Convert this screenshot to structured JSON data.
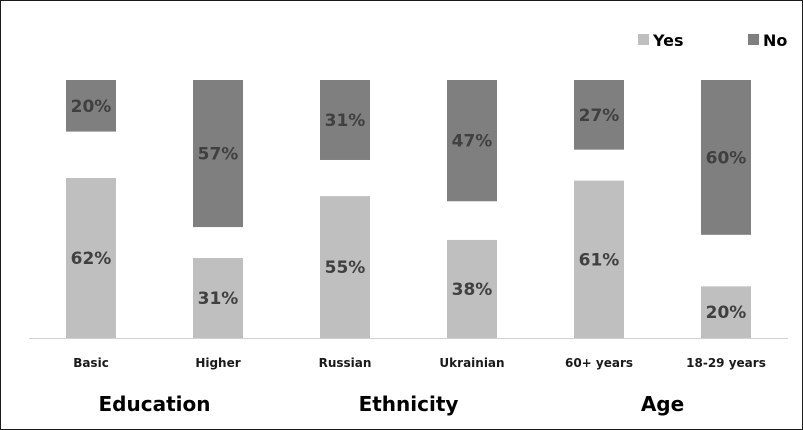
{
  "chart_data": {
    "type": "bar",
    "stacking": "diverging-from-gap",
    "categories": [
      "Basic",
      "Higher",
      "Russian",
      "Ukrainian",
      "60+ years",
      "18-29 years"
    ],
    "groups": [
      {
        "label": "Education",
        "categories": [
          "Basic",
          "Higher"
        ]
      },
      {
        "label": "Ethnicity",
        "categories": [
          "Russian",
          "Ukrainian"
        ]
      },
      {
        "label": "Age",
        "categories": [
          "60+ years",
          "18-29 years"
        ]
      }
    ],
    "series": [
      {
        "name": "Yes",
        "values": [
          62,
          31,
          55,
          38,
          61,
          20
        ],
        "labels": [
          "62%",
          "31%",
          "55%",
          "38%",
          "61%",
          "20%"
        ],
        "color": "#bfbfbf"
      },
      {
        "name": "No",
        "values": [
          20,
          57,
          31,
          47,
          27,
          60
        ],
        "labels": [
          "20%",
          "57%",
          "31%",
          "47%",
          "27%",
          "60%"
        ],
        "color": "#7f7f7f"
      }
    ],
    "legend": "top-right",
    "grid": false,
    "title": "",
    "xlabel": "",
    "ylabel": ""
  }
}
